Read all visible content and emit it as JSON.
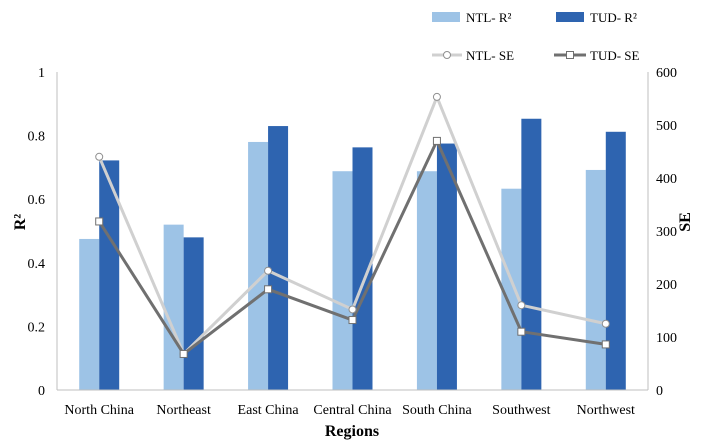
{
  "chart_data": {
    "type": "bar",
    "categories": [
      "North China",
      "Northeast",
      "East China",
      "Central China",
      "South China",
      "Southwest",
      "Northwest"
    ],
    "xlabel": "Regions",
    "ylabel": "R²",
    "y2label": "SE",
    "ylim": [
      0,
      1
    ],
    "yticks": [
      "0",
      "0.2",
      "0.4",
      "0.6",
      "0.8",
      "1"
    ],
    "y2lim": [
      0,
      600
    ],
    "y2ticks": [
      "0",
      "100",
      "200",
      "300",
      "400",
      "500",
      "600"
    ],
    "grid": false,
    "legend_position": "top-right",
    "series": [
      {
        "name": "NTL- R²",
        "kind": "bar",
        "axis": "left",
        "color": "#9dc3e6",
        "values": [
          0.475,
          0.52,
          0.78,
          0.688,
          0.688,
          0.633,
          0.692
        ]
      },
      {
        "name": "TUD- R²",
        "kind": "bar",
        "axis": "left",
        "color": "#2e64b0",
        "values": [
          0.722,
          0.48,
          0.83,
          0.763,
          0.775,
          0.853,
          0.812
        ]
      },
      {
        "name": "NTL- SE",
        "kind": "line",
        "axis": "right",
        "color": "#d0d0d0",
        "marker": "circle",
        "values": [
          440,
          68,
          225,
          152,
          553,
          160,
          125
        ]
      },
      {
        "name": "TUD- SE",
        "kind": "line",
        "axis": "right",
        "color": "#707070",
        "marker": "square",
        "values": [
          318,
          68,
          190,
          132,
          470,
          110,
          86
        ]
      }
    ]
  }
}
